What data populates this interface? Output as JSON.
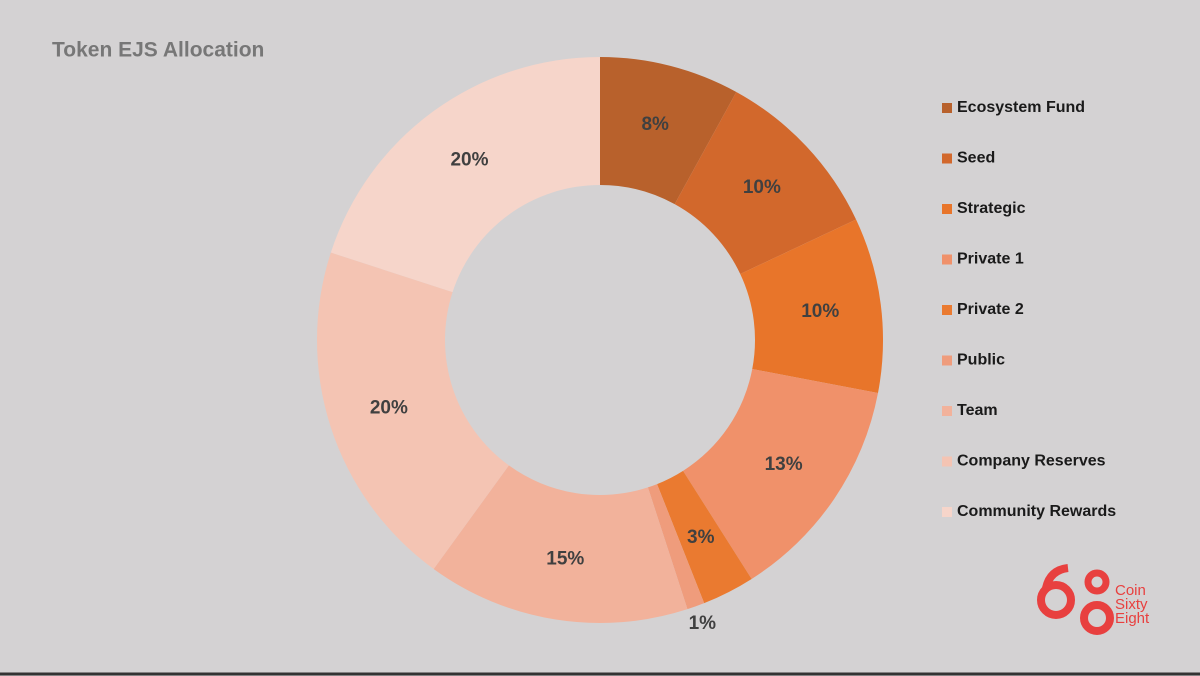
{
  "chart_data": {
    "type": "donut",
    "title": "Token EJS Allocation",
    "categories": [
      "Ecosystem Fund",
      "Seed",
      "Strategic",
      "Private 1",
      "Private 2",
      "Public",
      "Team",
      "Company Reserves",
      "Community Rewards"
    ],
    "values": [
      8,
      10,
      10,
      13,
      3,
      1,
      15,
      20,
      20
    ],
    "value_labels": [
      "8%",
      "10%",
      "10%",
      "13%",
      "3%",
      "1%",
      "15%",
      "20%",
      "20%"
    ],
    "colors": [
      "#b8612c",
      "#d2682c",
      "#e8752a",
      "#f0916a",
      "#ea7a30",
      "#ef9c7c",
      "#f2b29b",
      "#f4c4b3",
      "#f6d5ca"
    ],
    "legend": "right"
  },
  "logo": {
    "lines": [
      "Coin",
      "Sixty",
      "Eight"
    ]
  }
}
